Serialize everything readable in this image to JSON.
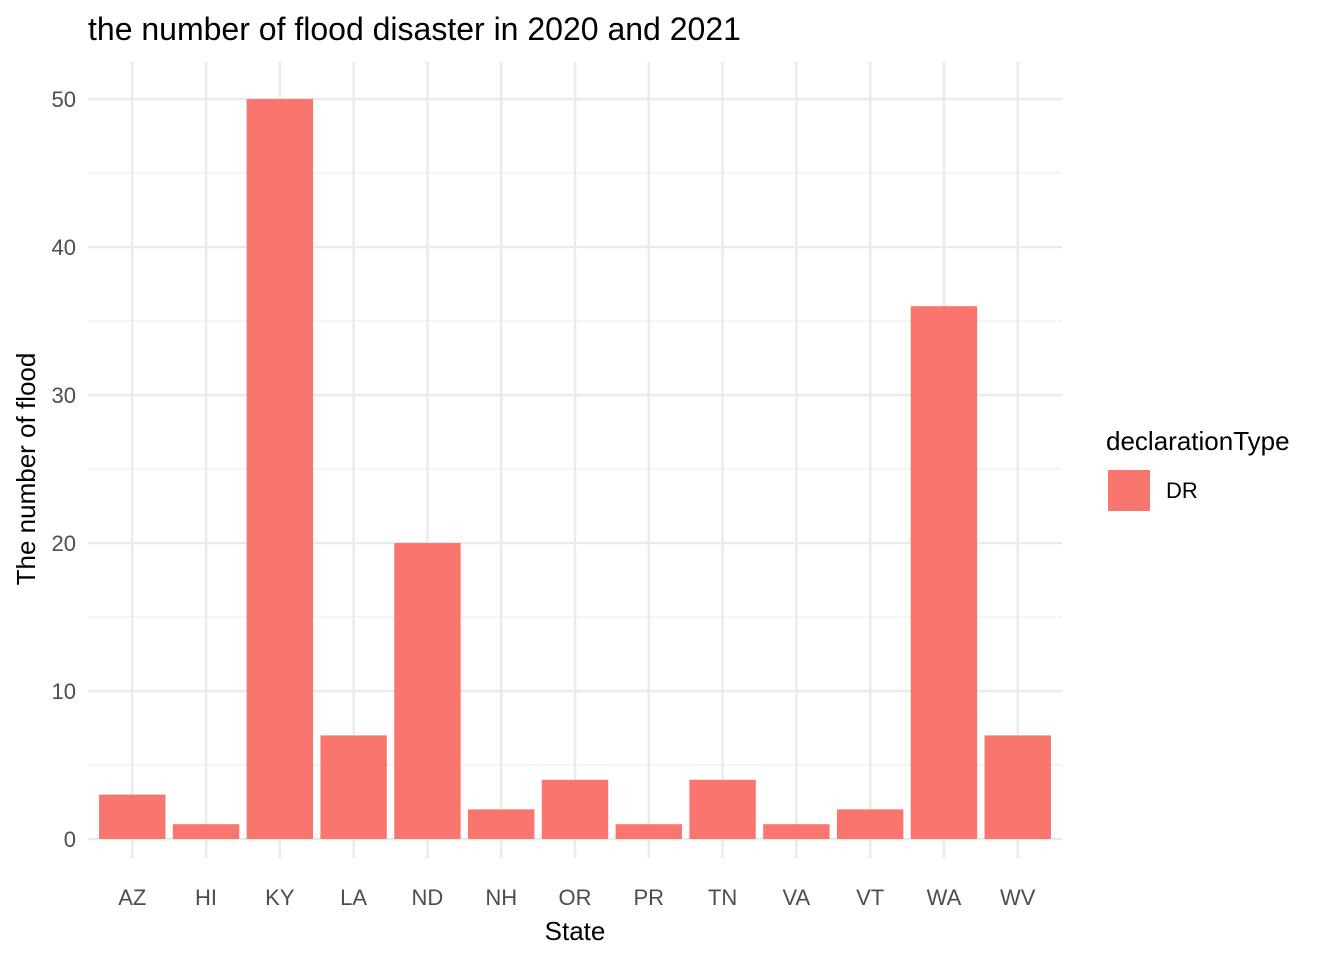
{
  "chart_data": {
    "type": "bar",
    "title": "the number of flood disaster in 2020 and 2021",
    "xlabel": "State",
    "ylabel": "The number of flood",
    "categories": [
      "AZ",
      "HI",
      "KY",
      "LA",
      "ND",
      "NH",
      "OR",
      "PR",
      "TN",
      "VA",
      "VT",
      "WA",
      "WV"
    ],
    "series": [
      {
        "name": "DR",
        "color": "#F8766D",
        "values": [
          3,
          1,
          50,
          7,
          20,
          2,
          4,
          1,
          4,
          1,
          2,
          36,
          7
        ]
      }
    ],
    "ylim": [
      0,
      52.5
    ],
    "yticks": [
      0,
      10,
      20,
      30,
      40,
      50
    ],
    "grid": true,
    "legend": {
      "title": "declarationType",
      "position": "right",
      "entries": [
        "DR"
      ]
    }
  }
}
